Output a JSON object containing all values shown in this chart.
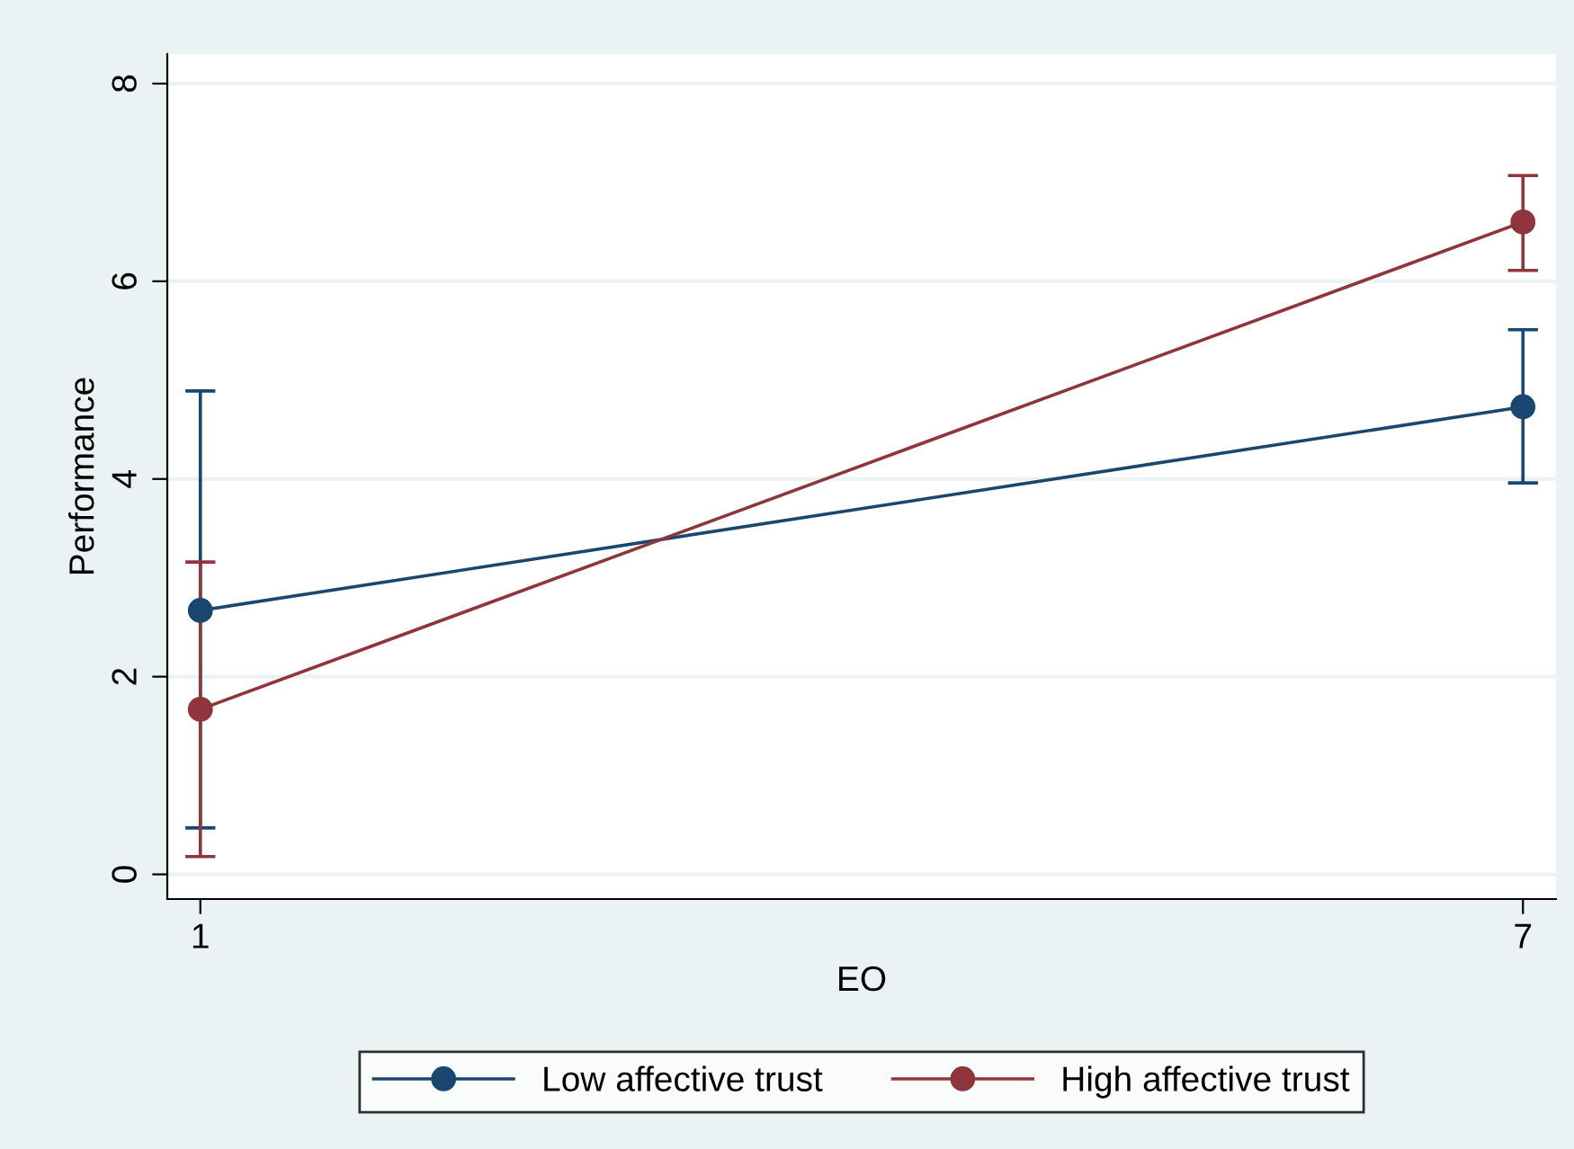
{
  "chart_data": {
    "type": "line",
    "xlabel": "EO",
    "ylabel": "Performance",
    "x": [
      1,
      7
    ],
    "xlim": [
      0.85,
      7.15
    ],
    "ylim": [
      -0.25,
      8.3
    ],
    "xticks": [
      1,
      7
    ],
    "yticks": [
      0,
      2,
      4,
      6,
      8
    ],
    "grid": "y",
    "legend": "bottom",
    "marker": "circle",
    "line_style": "solid",
    "series": [
      {
        "name": "Low affective trust",
        "color": "#1a476f",
        "values": [
          2.67,
          4.73
        ],
        "errors": [
          [
            0.47,
            4.89
          ],
          [
            3.96,
            5.51
          ]
        ]
      },
      {
        "name": "High affective trust",
        "color": "#90353b",
        "values": [
          1.67,
          6.6
        ],
        "errors": [
          [
            0.18,
            3.16
          ],
          [
            6.11,
            7.07
          ]
        ]
      }
    ]
  }
}
